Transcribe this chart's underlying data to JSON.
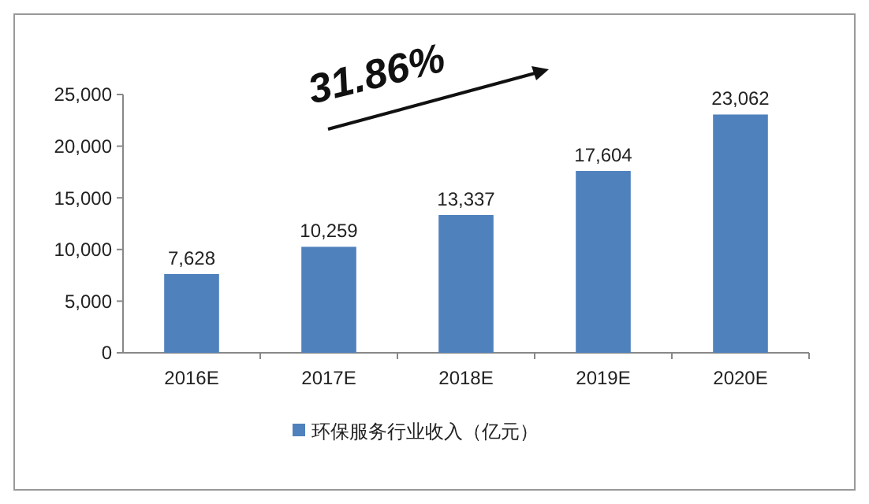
{
  "chart_data": {
    "type": "bar",
    "categories": [
      "2016E",
      "2017E",
      "2018E",
      "2019E",
      "2020E"
    ],
    "series": [
      {
        "name": "环保服务行业收入（亿元）",
        "color": "#4f81bd",
        "values": [
          7628,
          10259,
          13337,
          17604,
          23062
        ],
        "value_labels": [
          "7,628",
          "10,259",
          "13,337",
          "17,604",
          "23,062"
        ]
      }
    ],
    "ylim": [
      0,
      25000
    ],
    "yticks": [
      0,
      {
        "value": 5000,
        "label": "5,000"
      },
      {
        "value": 10000,
        "label": "10,000"
      },
      {
        "value": 15000,
        "label": "15,000"
      },
      {
        "value": 20000,
        "label": "20,000"
      },
      {
        "value": 25000,
        "label": "25,000"
      }
    ],
    "legend": "bottom",
    "grid": false,
    "annotations": [
      "31.86%"
    ]
  }
}
